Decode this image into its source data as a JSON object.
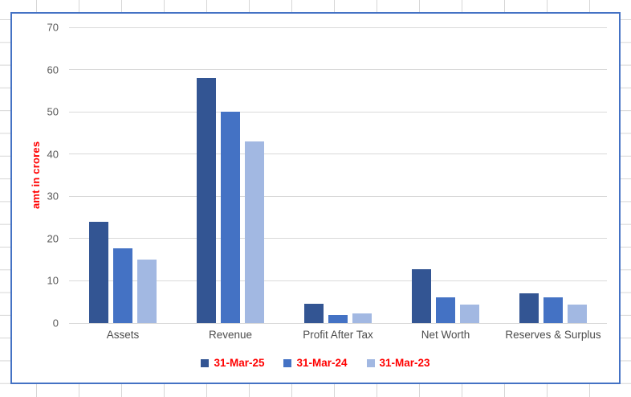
{
  "spreadsheet": {
    "background_color": "#FFFFFF",
    "gridline_color": "#D6D6D6"
  },
  "chart": {
    "border_color": "#4472C4",
    "background_color": "#FFFFFF",
    "plot_gridline_color": "#D9D9D9",
    "tick_label_color": "#595959",
    "category_label_color": "#4D4D4D",
    "axis_title_color": "#FF0000",
    "legend_text_color": "#FF0000"
  },
  "chart_data": {
    "type": "bar",
    "title": "",
    "xlabel": "",
    "ylabel": "amt in crores",
    "categories": [
      "Assets",
      "Revenue",
      "Profit After Tax",
      "Net Worth",
      "Reserves & Surplus"
    ],
    "series": [
      {
        "name": "31-Mar-25",
        "color": "#335593",
        "values": [
          24,
          58,
          4.5,
          12.7,
          7
        ]
      },
      {
        "name": "31-Mar-24",
        "color": "#4472C4",
        "values": [
          17.6,
          50,
          1.9,
          6,
          6
        ]
      },
      {
        "name": "31-Mar-23",
        "color": "#A2B8E2",
        "values": [
          15,
          43,
          2.2,
          4.4,
          4.3
        ]
      }
    ],
    "ylim": [
      0,
      70
    ],
    "yticks": [
      0,
      10,
      20,
      30,
      40,
      50,
      60,
      70
    ],
    "grid": true,
    "legend_position": "bottom"
  }
}
